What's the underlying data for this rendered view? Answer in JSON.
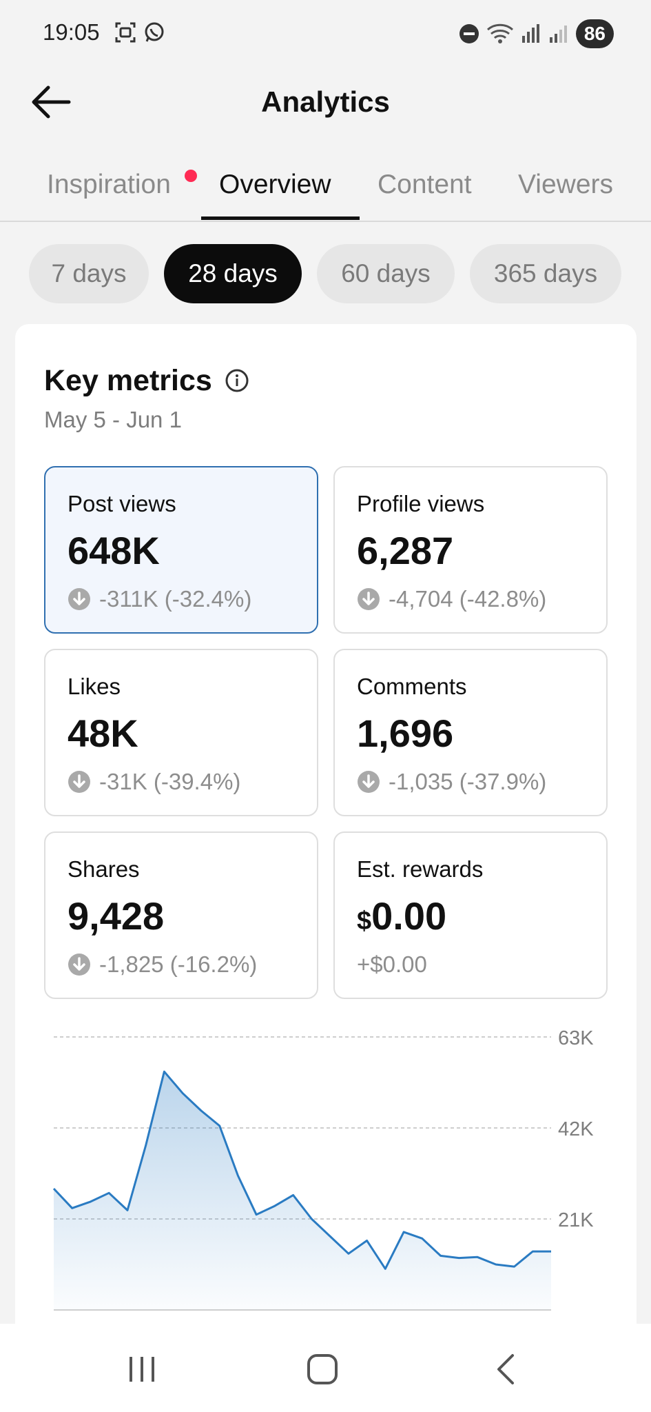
{
  "status_bar": {
    "time": "19:05",
    "battery": "86",
    "icons_left": [
      "screenshot-icon",
      "whatsapp-icon"
    ],
    "icons_right": [
      "dnd-icon",
      "wifi-icon",
      "signal-icon",
      "signal-icon-2"
    ]
  },
  "header": {
    "title": "Analytics",
    "back_icon": "arrow-left-icon"
  },
  "tabs": [
    {
      "label": "Inspiration",
      "active": false,
      "has_dot": true
    },
    {
      "label": "Overview",
      "active": true
    },
    {
      "label": "Content",
      "active": false
    },
    {
      "label": "Viewers",
      "active": false
    }
  ],
  "periods": [
    {
      "label": "7 days",
      "active": false
    },
    {
      "label": "28 days",
      "active": true
    },
    {
      "label": "60 days",
      "active": false
    },
    {
      "label": "365 days",
      "active": false
    }
  ],
  "key_metrics": {
    "title": "Key metrics",
    "range": "May 5 - Jun 1",
    "items": [
      {
        "label": "Post views",
        "value": "648K",
        "change": "-311K (-32.4%)",
        "selected": true
      },
      {
        "label": "Profile views",
        "value": "6,287",
        "change": "-4,704 (-42.8%)"
      },
      {
        "label": "Likes",
        "value": "48K",
        "change": "-31K (-39.4%)"
      },
      {
        "label": "Comments",
        "value": "1,696",
        "change": "-1,035 (-37.9%)"
      },
      {
        "label": "Shares",
        "value": "9,428",
        "change": "-1,825 (-16.2%)"
      },
      {
        "label": "Est. rewards",
        "currency": "$",
        "value": "0.00",
        "change": "+$0.00"
      }
    ]
  },
  "colors": {
    "accent_line": "#2a7bc2",
    "selected_border": "#2f6fb0",
    "selected_bg": "#f2f6fd",
    "notification_dot": "#ff2b54"
  },
  "chart_data": {
    "type": "area",
    "title": "",
    "xlabel": "",
    "ylabel": "",
    "y_ticks": [
      "63K",
      "42K",
      "21K"
    ],
    "ylim": [
      0,
      63000
    ],
    "x": [
      1,
      2,
      3,
      4,
      5,
      6,
      7,
      8,
      9,
      10,
      11,
      12,
      13,
      14,
      15,
      16,
      17,
      18,
      19,
      20,
      21,
      22,
      23,
      24,
      25,
      26,
      27,
      28
    ],
    "values": [
      28000,
      23500,
      25000,
      27000,
      23000,
      38000,
      55000,
      50000,
      46000,
      42500,
      31000,
      22000,
      24000,
      26500,
      21000,
      17000,
      13000,
      16000,
      9500,
      18000,
      16500,
      12500,
      12000,
      12200,
      10500,
      10000,
      13500,
      13500
    ],
    "grid": true
  }
}
